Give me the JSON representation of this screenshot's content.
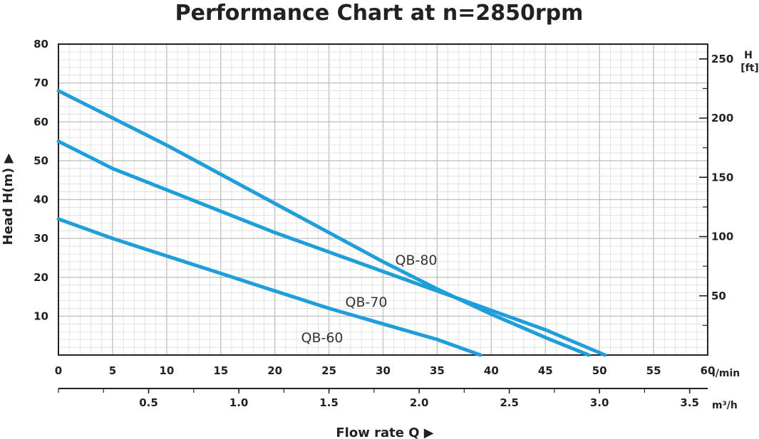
{
  "chart_data": {
    "type": "line",
    "title": "Performance Chart at n=2850rpm",
    "xlabel": "Flow rate Q ▶",
    "ylabel": "Head H(m) ▶",
    "x_unit": "l/min",
    "x2_unit": "m³/h",
    "y2_unit_line1": "H",
    "y2_unit_line2": "[ft]",
    "xlim": [
      0,
      60
    ],
    "ylim": [
      0,
      80
    ],
    "x_ticks": [
      0,
      5,
      10,
      15,
      20,
      25,
      30,
      35,
      40,
      45,
      50,
      55,
      60
    ],
    "y_ticks": [
      10,
      20,
      30,
      40,
      50,
      60,
      70,
      80
    ],
    "x2_ticks": [
      "0.5",
      "1.0",
      "1.5",
      "2.0",
      "2.5",
      "3.0",
      "3.5"
    ],
    "y2_ticks": [
      50,
      100,
      150,
      200,
      250
    ],
    "grid": true,
    "line_color": "#1e9fdc",
    "series": [
      {
        "name": "QB-80",
        "x": [
          0,
          5,
          10,
          15,
          20,
          25,
          30,
          35,
          40,
          45,
          49
        ],
        "y": [
          68,
          61,
          54,
          46.5,
          39,
          31.5,
          24,
          17,
          10.5,
          4.5,
          0
        ]
      },
      {
        "name": "QB-70",
        "x": [
          0,
          5,
          10,
          15,
          20,
          25,
          30,
          35,
          40,
          45,
          50.5
        ],
        "y": [
          55,
          48,
          42.5,
          37,
          31.5,
          26.5,
          21.5,
          16.5,
          11.5,
          6.5,
          0
        ]
      },
      {
        "name": "QB-60",
        "x": [
          0,
          5,
          10,
          15,
          20,
          25,
          30,
          35,
          39
        ],
        "y": [
          35,
          30,
          25.5,
          21,
          16.5,
          12,
          8,
          4,
          0
        ]
      }
    ]
  }
}
